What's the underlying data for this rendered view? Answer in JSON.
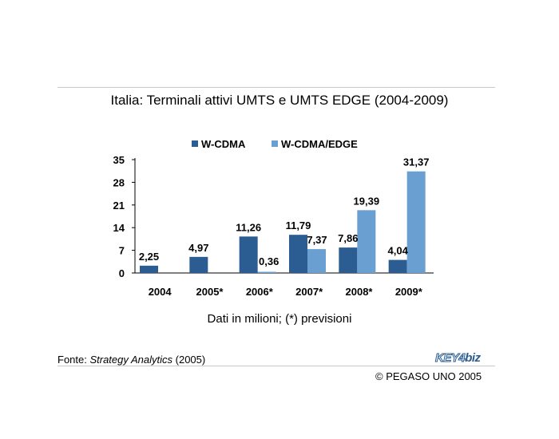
{
  "slide": {
    "title": "Italia: Terminali attivi UMTS e UMTS EDGE (2004-2009)",
    "note": "Dati in milioni; (*) previsioni",
    "source_prefix": "Fonte: ",
    "source_name": "Strategy Analytics",
    "source_suffix": " (2005)",
    "copyright": "© PEGASO UNO 2005",
    "logo_part1": "KEY4",
    "logo_part2": "biz"
  },
  "chart_data": {
    "type": "bar",
    "title": "",
    "xlabel": "",
    "ylabel": "",
    "categories": [
      "2004",
      "2005*",
      "2006*",
      "2007*",
      "2008*",
      "2009*"
    ],
    "series": [
      {
        "name": "W-CDMA",
        "color": "#2b5d92",
        "values": [
          2.25,
          4.97,
          11.26,
          11.79,
          7.86,
          4.04
        ],
        "labels": [
          "2,25",
          "4,97",
          "11,26",
          "11,79",
          "7,86",
          "4,04"
        ]
      },
      {
        "name": "W-CDMA/EDGE",
        "color": "#6a9fd2",
        "values": [
          null,
          null,
          0.36,
          7.37,
          19.39,
          31.37
        ],
        "labels": [
          "",
          "",
          "0,36",
          "7,37",
          "19,39",
          "31,37"
        ]
      }
    ],
    "yticks": [
      "0",
      "7",
      "14",
      "21",
      "28",
      "35"
    ],
    "ylim": [
      0,
      35
    ],
    "grid": false,
    "legend": "top"
  }
}
